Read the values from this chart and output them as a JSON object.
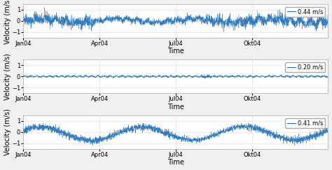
{
  "n_points": 3000,
  "x_ticks": [
    "Jan04",
    "Apr04",
    "Jul04",
    "Okt04"
  ],
  "x_tick_positions": [
    0,
    750,
    1500,
    2250
  ],
  "xlabel": "Time",
  "ylabel": "Velocity (m/s)",
  "ylim": [
    -1.5,
    1.5
  ],
  "yticks": [
    -1,
    0,
    1
  ],
  "legend_labels": [
    "0.44 m/s",
    "0.20 m/s",
    "0.41 m/s"
  ],
  "line_color": "#1f6eb5",
  "bg_color": "#f5f5f5",
  "grid_color": "#e0e0e0",
  "panel_bg": "#ffffff",
  "seeds": [
    42,
    99,
    7
  ],
  "amplitudes": [
    1.0,
    0.45,
    0.95
  ],
  "low_freq_amps": [
    0.5,
    0.08,
    0.6
  ],
  "noise_scales": [
    0.25,
    0.18,
    0.2
  ],
  "title_fontsize": 7,
  "tick_fontsize": 6,
  "label_fontsize": 7
}
